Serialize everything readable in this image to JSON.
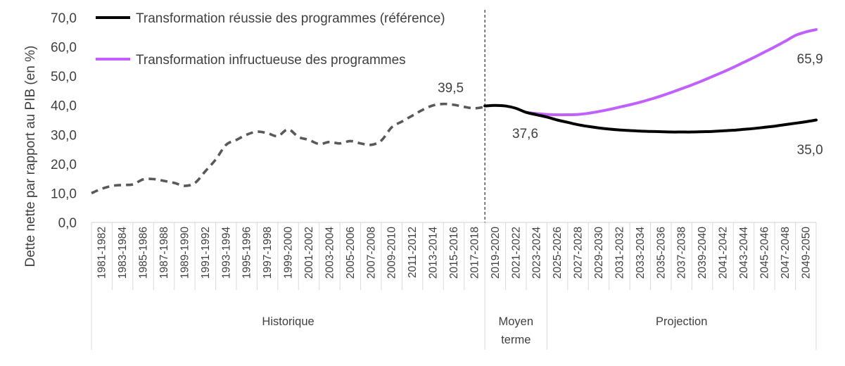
{
  "chart_data": {
    "type": "line",
    "title": "",
    "ylabel": "Dette nette par rapport au PIB (en %)",
    "ylim": [
      0,
      70
    ],
    "yticks": [
      "0,0",
      "10,0",
      "20,0",
      "30,0",
      "40,0",
      "50,0",
      "60,0",
      "70,0"
    ],
    "grid": false,
    "legend_position": "top-left",
    "categories": [
      "1981-1982",
      "1983-1984",
      "1985-1986",
      "1987-1988",
      "1989-1990",
      "1991-1992",
      "1993-1994",
      "1995-1996",
      "1997-1998",
      "1999-2000",
      "2001-2002",
      "2003-2004",
      "2005-2006",
      "2007-2008",
      "2009-2010",
      "2011-2012",
      "2013-2014",
      "2015-2016",
      "2017-2018",
      "2019-2020",
      "2021-2022",
      "2023-2024",
      "2025-2026",
      "2027-2028",
      "2029-2030",
      "2031-2032",
      "2033-2034",
      "2035-2036",
      "2037-2038",
      "2039-2040",
      "2041-2042",
      "2043-2044",
      "2045-2046",
      "2047-2048",
      "2049-2050"
    ],
    "x_years": [
      1981,
      2050
    ],
    "periods": [
      {
        "label": "Historique",
        "from": "1981-1982",
        "to": "2017-2018"
      },
      {
        "label": "Moyen terme",
        "from": "2019-2020",
        "to": "2023-2024"
      },
      {
        "label": "Projection",
        "from": "2025-2026",
        "to": "2049-2050"
      }
    ],
    "series": [
      {
        "name": "",
        "style": "dashed",
        "color": "#595959",
        "points": [
          [
            1981,
            10.0
          ],
          [
            1982,
            11.5
          ],
          [
            1983,
            12.5
          ],
          [
            1984,
            12.8
          ],
          [
            1985,
            13.0
          ],
          [
            1986,
            14.7
          ],
          [
            1987,
            14.8
          ],
          [
            1988,
            14.2
          ],
          [
            1989,
            13.5
          ],
          [
            1990,
            12.5
          ],
          [
            1991,
            13.5
          ],
          [
            1992,
            17.5
          ],
          [
            1993,
            21.5
          ],
          [
            1994,
            26.5
          ],
          [
            1995,
            28.2
          ],
          [
            1996,
            30.0
          ],
          [
            1997,
            31.0
          ],
          [
            1998,
            30.5
          ],
          [
            1999,
            29.5
          ],
          [
            2000,
            31.8
          ],
          [
            2001,
            29.2
          ],
          [
            2002,
            28.2
          ],
          [
            2003,
            26.8
          ],
          [
            2004,
            27.5
          ],
          [
            2005,
            27.0
          ],
          [
            2006,
            27.8
          ],
          [
            2007,
            27.0
          ],
          [
            2008,
            26.5
          ],
          [
            2009,
            28.0
          ],
          [
            2010,
            32.5
          ],
          [
            2011,
            34.5
          ],
          [
            2012,
            36.5
          ],
          [
            2013,
            38.5
          ],
          [
            2014,
            40.0
          ],
          [
            2015,
            40.5
          ],
          [
            2016,
            40.2
          ],
          [
            2017,
            39.5
          ],
          [
            2018,
            39.0
          ],
          [
            2019,
            39.5
          ]
        ]
      },
      {
        "name": "Transformation réussie des programmes (référence)",
        "style": "solid",
        "color": "#000000",
        "points": [
          [
            2019,
            39.8
          ],
          [
            2020,
            40.0
          ],
          [
            2021,
            39.8
          ],
          [
            2022,
            39.0
          ],
          [
            2023,
            37.6
          ],
          [
            2024,
            36.8
          ],
          [
            2025,
            36.0
          ],
          [
            2026,
            35.0
          ],
          [
            2027,
            34.2
          ],
          [
            2028,
            33.4
          ],
          [
            2029,
            32.8
          ],
          [
            2030,
            32.3
          ],
          [
            2031,
            31.9
          ],
          [
            2032,
            31.6
          ],
          [
            2033,
            31.4
          ],
          [
            2034,
            31.2
          ],
          [
            2035,
            31.1
          ],
          [
            2036,
            31.0
          ],
          [
            2037,
            30.9
          ],
          [
            2038,
            30.9
          ],
          [
            2039,
            30.9
          ],
          [
            2040,
            31.0
          ],
          [
            2041,
            31.1
          ],
          [
            2042,
            31.3
          ],
          [
            2043,
            31.5
          ],
          [
            2044,
            31.8
          ],
          [
            2045,
            32.1
          ],
          [
            2046,
            32.5
          ],
          [
            2047,
            32.9
          ],
          [
            2048,
            33.4
          ],
          [
            2049,
            33.9
          ],
          [
            2050,
            34.4
          ],
          [
            2051,
            35.0
          ]
        ]
      },
      {
        "name": "Transformation infructueuse des programmes",
        "style": "solid",
        "color": "#C061FF",
        "points": [
          [
            2023,
            37.6
          ],
          [
            2024,
            37.2
          ],
          [
            2025,
            36.9
          ],
          [
            2026,
            36.8
          ],
          [
            2027,
            36.8
          ],
          [
            2028,
            36.9
          ],
          [
            2029,
            37.3
          ],
          [
            2030,
            37.9
          ],
          [
            2031,
            38.6
          ],
          [
            2032,
            39.4
          ],
          [
            2033,
            40.2
          ],
          [
            2034,
            41.1
          ],
          [
            2035,
            42.1
          ],
          [
            2036,
            43.2
          ],
          [
            2037,
            44.4
          ],
          [
            2038,
            45.7
          ],
          [
            2039,
            47.0
          ],
          [
            2040,
            48.4
          ],
          [
            2041,
            49.9
          ],
          [
            2042,
            51.4
          ],
          [
            2043,
            53.0
          ],
          [
            2044,
            54.7
          ],
          [
            2045,
            56.4
          ],
          [
            2046,
            58.2
          ],
          [
            2047,
            60.0
          ],
          [
            2048,
            61.9
          ],
          [
            2049,
            63.9
          ],
          [
            2050,
            65.1
          ],
          [
            2051,
            65.9
          ]
        ]
      }
    ],
    "annotations": [
      {
        "text": "39,5",
        "x": 2015.7,
        "y": 46.2
      },
      {
        "text": "37,6",
        "x": 2022.9,
        "y": 30.6
      },
      {
        "text": "65,9",
        "x": 2050.4,
        "y": 56.0
      },
      {
        "text": "35,0",
        "x": 2050.4,
        "y": 25.0
      }
    ]
  }
}
